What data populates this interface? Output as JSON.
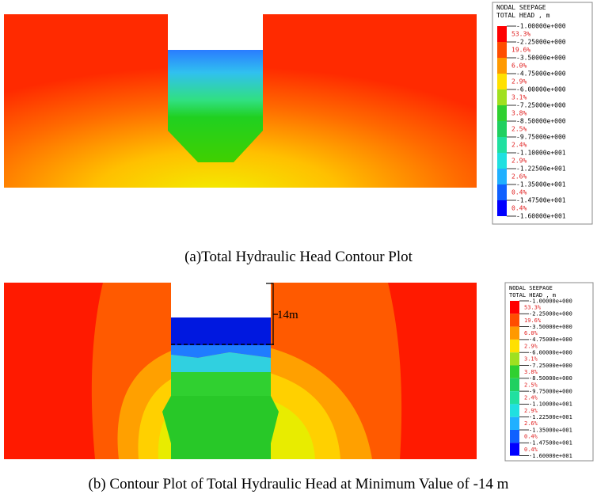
{
  "panels": [
    {
      "caption": "(a)Total Hydraulic Head Contour Plot",
      "legend": {
        "title": [
          "NODAL SEEPAGE",
          "TOTAL HEAD , m"
        ],
        "levels": [
          "-1.00000e+000",
          "-2.25000e+000",
          "-3.50000e+000",
          "-4.75000e+000",
          "-6.00000e+000",
          "-7.25000e+000",
          "-8.50000e+000",
          "-9.75000e+000",
          "-1.10000e+001",
          "-1.22500e+001",
          "-1.35000e+001",
          "-1.47500e+001",
          "-1.60000e+001"
        ],
        "percentages": [
          "53.3%",
          "19.6%",
          "6.0%",
          "2.9%",
          "3.1%",
          "3.8%",
          "2.5%",
          "2.4%",
          "2.9%",
          "2.6%",
          "0.4%",
          "0.4%"
        ]
      }
    },
    {
      "caption": "(b) Contour Plot of Total Hydraulic Head at Minimum Value of -14 m",
      "annotation": "14m",
      "legend": {
        "title": [
          "NODAL SEEPAGE",
          "TOTAL HEAD , m"
        ],
        "levels": [
          "-1.00000e+000",
          "-2.25000e+000",
          "-3.50000e+000",
          "-4.75000e+000",
          "-6.00000e+000",
          "-7.25000e+000",
          "-8.50000e+000",
          "-9.75000e+000",
          "-1.10000e+001",
          "-1.22500e+001",
          "-1.35000e+001",
          "-1.47500e+001",
          "-1.60000e+001"
        ],
        "percentages": [
          "53.3%",
          "19.6%",
          "6.0%",
          "2.9%",
          "3.1%",
          "3.8%",
          "2.5%",
          "2.4%",
          "2.9%",
          "2.6%",
          "0.4%",
          "0.4%"
        ]
      }
    }
  ]
}
